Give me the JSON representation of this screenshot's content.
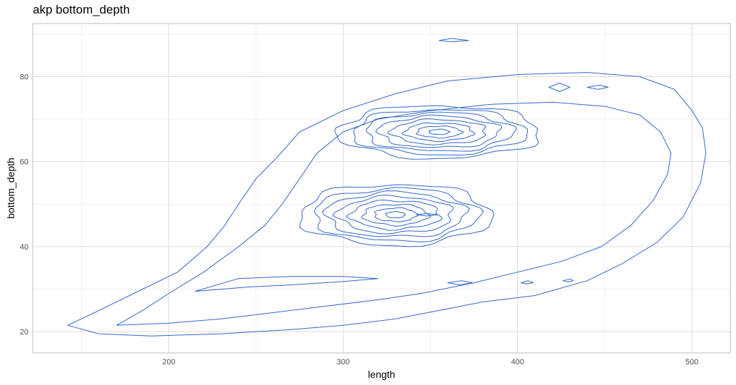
{
  "chart_data": {
    "type": "contour",
    "title": "akp bottom_depth",
    "xlabel": "length",
    "ylabel": "bottom_depth",
    "xlim": [
      122,
      522
    ],
    "ylim": [
      15,
      92.5
    ],
    "x_ticks": [
      200,
      300,
      400,
      500
    ],
    "y_ticks": [
      20,
      40,
      60,
      80
    ],
    "x_minor": [
      150,
      250,
      350,
      450
    ],
    "y_minor": [
      30,
      50,
      70,
      90
    ],
    "grid": true,
    "line_color": "#3366cc",
    "peaks": [
      {
        "cx": 330,
        "cy": 47.5,
        "rx": 55,
        "ry": 7.2
      },
      {
        "cx": 355,
        "cy": 67,
        "rx": 58,
        "ry": 6.2
      }
    ],
    "level_scales": [
      0.1,
      0.22,
      0.34,
      0.47,
      0.6,
      0.73,
      0.86,
      1.0
    ],
    "outer_contours": [
      {
        "name": "level-1",
        "points": [
          [
            142,
            21.5
          ],
          [
            160,
            19.5
          ],
          [
            190,
            19
          ],
          [
            230,
            19.5
          ],
          [
            270,
            20.5
          ],
          [
            300,
            21.5
          ],
          [
            330,
            23
          ],
          [
            355,
            25
          ],
          [
            380,
            27
          ],
          [
            410,
            28.5
          ],
          [
            440,
            32
          ],
          [
            460,
            36
          ],
          [
            480,
            41
          ],
          [
            495,
            47
          ],
          [
            505,
            55
          ],
          [
            508,
            62
          ],
          [
            506,
            68
          ],
          [
            500,
            72
          ],
          [
            490,
            77
          ],
          [
            470,
            80
          ],
          [
            440,
            81
          ],
          [
            400,
            80.5
          ],
          [
            360,
            79
          ],
          [
            330,
            76
          ],
          [
            300,
            72
          ],
          [
            275,
            67
          ],
          [
            262,
            61
          ],
          [
            250,
            56
          ],
          [
            240,
            50
          ],
          [
            232,
            45
          ],
          [
            222,
            40
          ],
          [
            205,
            34
          ],
          [
            180,
            29
          ],
          [
            160,
            25
          ],
          [
            142,
            21.5
          ]
        ]
      },
      {
        "name": "level-2",
        "points": [
          [
            170,
            21.5
          ],
          [
            200,
            22
          ],
          [
            230,
            23
          ],
          [
            260,
            24.5
          ],
          [
            290,
            26
          ],
          [
            320,
            27.5
          ],
          [
            345,
            29
          ],
          [
            375,
            31.5
          ],
          [
            400,
            34
          ],
          [
            425,
            36.5
          ],
          [
            448,
            40
          ],
          [
            465,
            45
          ],
          [
            478,
            51
          ],
          [
            486,
            57
          ],
          [
            488,
            62
          ],
          [
            482,
            67
          ],
          [
            470,
            71
          ],
          [
            450,
            73
          ],
          [
            420,
            74
          ],
          [
            385,
            73.5
          ],
          [
            350,
            72
          ],
          [
            320,
            70
          ],
          [
            300,
            67
          ],
          [
            285,
            62
          ],
          [
            275,
            56
          ],
          [
            265,
            50
          ],
          [
            255,
            45
          ],
          [
            240,
            40
          ],
          [
            220,
            34
          ],
          [
            200,
            29
          ],
          [
            185,
            25
          ],
          [
            170,
            21.5
          ]
        ]
      }
    ],
    "small_contours": [
      {
        "name": "island-top",
        "points": [
          [
            355,
            88.5
          ],
          [
            362,
            89
          ],
          [
            372,
            88.5
          ],
          [
            362,
            88.2
          ],
          [
            355,
            88.5
          ]
        ]
      },
      {
        "name": "island-right-1",
        "points": [
          [
            418,
            77.5
          ],
          [
            424,
            78.5
          ],
          [
            430,
            77.5
          ],
          [
            424,
            76.5
          ],
          [
            418,
            77.5
          ]
        ]
      },
      {
        "name": "island-right-2",
        "points": [
          [
            440,
            77.5
          ],
          [
            447,
            78
          ],
          [
            452,
            77.5
          ],
          [
            446,
            77
          ],
          [
            440,
            77.5
          ]
        ]
      },
      {
        "name": "island-left",
        "points": [
          [
            215,
            29.5
          ],
          [
            240,
            32.5
          ],
          [
            270,
            33
          ],
          [
            300,
            33
          ],
          [
            320,
            32.5
          ],
          [
            300,
            31.8
          ],
          [
            270,
            31
          ],
          [
            245,
            30.5
          ],
          [
            215,
            29.5
          ]
        ]
      },
      {
        "name": "island-mid-a",
        "points": [
          [
            360,
            31.5
          ],
          [
            368,
            32
          ],
          [
            374,
            31.5
          ],
          [
            367,
            31
          ],
          [
            360,
            31.5
          ]
        ]
      },
      {
        "name": "island-mid-b",
        "points": [
          [
            402,
            31.5
          ],
          [
            406,
            32
          ],
          [
            409,
            31.5
          ],
          [
            405,
            31.2
          ],
          [
            402,
            31.5
          ]
        ]
      },
      {
        "name": "island-mid-c",
        "points": [
          [
            426,
            32
          ],
          [
            430,
            32.4
          ],
          [
            432,
            32
          ],
          [
            429,
            31.7
          ],
          [
            426,
            32
          ]
        ]
      },
      {
        "name": "island-center",
        "points": [
          [
            342,
            47.5
          ],
          [
            348,
            47.8
          ],
          [
            354,
            47.5
          ],
          [
            348,
            47.2
          ],
          [
            342,
            47.5
          ]
        ]
      }
    ]
  }
}
